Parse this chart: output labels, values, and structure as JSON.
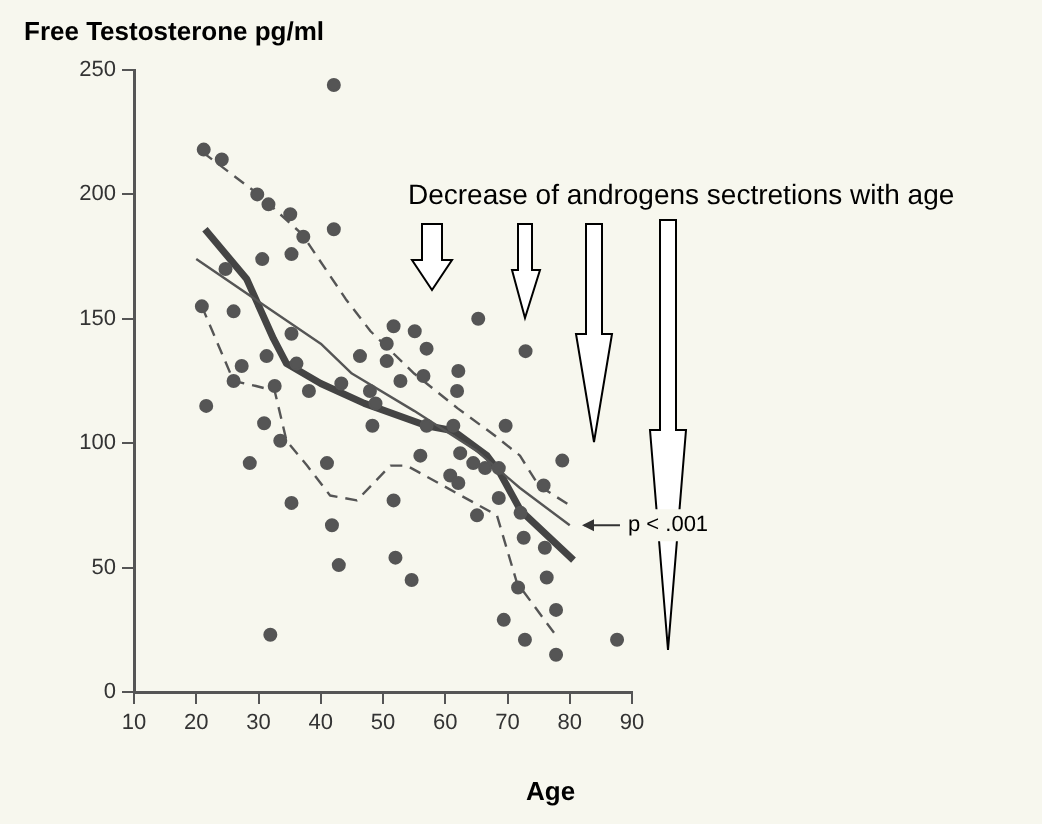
{
  "chart_data": {
    "type": "scatter",
    "ylabel": "Free Testosterone pg/ml",
    "xlabel": "Age",
    "annotations": [
      "Decrease of androgens sectretions with age",
      {
        "text": "p < .001",
        "x": 81,
        "y": 67
      }
    ],
    "xlim": [
      10,
      90
    ],
    "ylim": [
      0,
      250
    ],
    "xticks": [
      10,
      20,
      30,
      40,
      50,
      60,
      70,
      80,
      90
    ],
    "yticks": [
      0,
      50,
      100,
      150,
      200,
      250
    ],
    "grid": false,
    "legend": false,
    "series": [
      {
        "marker": "circle",
        "color": "#555555",
        "x": [
          21.2,
          24.1,
          42.1,
          29.8,
          31.6,
          35.1,
          37.2,
          42.1,
          24.7,
          30.6,
          35.3,
          20.9,
          26,
          51.7,
          35.3,
          31.3,
          27.3,
          36.1,
          50.6,
          46.3,
          50.6,
          26,
          32.6,
          38.1,
          43.3,
          47.9,
          48.8,
          21.6,
          30.9,
          33.5,
          28.6,
          41,
          48.3,
          35.3,
          41.8,
          42.9,
          51.7,
          52,
          31.9,
          55.1,
          65.3,
          57,
          72.9,
          62.1,
          56.5,
          52.8,
          61.9,
          69.7,
          57,
          61.3,
          62.4,
          56,
          64.5,
          66.4,
          68.6,
          60.8,
          62.1,
          78.8,
          75.8,
          68.6,
          72.1,
          65.1,
          72.6,
          76,
          76.3,
          54.6,
          71.7,
          77.8,
          69.4,
          72.8,
          77.8,
          87.6
        ],
        "values": [
          218,
          214,
          244,
          200,
          196,
          192,
          183,
          186,
          170,
          174,
          176,
          155,
          153,
          147,
          144,
          135,
          131,
          132,
          140,
          135,
          133,
          125,
          123,
          121,
          124,
          121,
          116,
          115,
          108,
          101,
          92,
          92,
          107,
          76,
          67,
          51,
          77,
          54,
          23,
          145,
          150,
          138,
          137,
          129,
          127,
          125,
          121,
          107,
          107,
          107,
          96,
          95,
          92,
          90,
          90,
          87,
          84,
          93,
          83,
          78,
          72,
          71,
          62,
          58,
          46,
          45,
          42,
          33,
          29,
          21,
          15,
          21
        ]
      },
      {
        "type": "line",
        "marker": "none",
        "line_style": "dashed",
        "color": "#555555",
        "x": [
          21,
          30,
          37,
          44,
          48,
          55,
          62,
          68,
          72,
          75,
          80
        ],
        "values": [
          217,
          200,
          184,
          158,
          145,
          128,
          114,
          103,
          95,
          83,
          75
        ]
      },
      {
        "type": "line",
        "marker": "none",
        "line_style": "solid",
        "color": "#555555",
        "x": [
          20,
          30,
          40,
          45,
          55,
          65,
          72,
          80
        ],
        "values": [
          174,
          157,
          140,
          128,
          113,
          97,
          82,
          67
        ]
      },
      {
        "type": "line",
        "marker": "none",
        "line_style": "solid",
        "color": "#444444",
        "x": [
          21.4,
          28.1,
          32.4,
          34.5,
          40,
          47,
          57,
          61.3,
          66.7,
          68.8,
          72.1,
          80.6
        ],
        "values": [
          186,
          166,
          142,
          132,
          124,
          116,
          107,
          105,
          95,
          88,
          73,
          53
        ]
      },
      {
        "type": "line",
        "marker": "none",
        "line_style": "dashed",
        "color": "#555555",
        "x": [
          20.9,
          26,
          29.6,
          32.6,
          34.5,
          37.8,
          41.5,
          45.8,
          51.2,
          53.8,
          68.3,
          71.5,
          78
        ],
        "values": [
          155,
          125,
          123,
          121,
          101,
          91,
          79,
          77,
          91,
          91,
          71,
          44,
          22
        ]
      }
    ]
  }
}
